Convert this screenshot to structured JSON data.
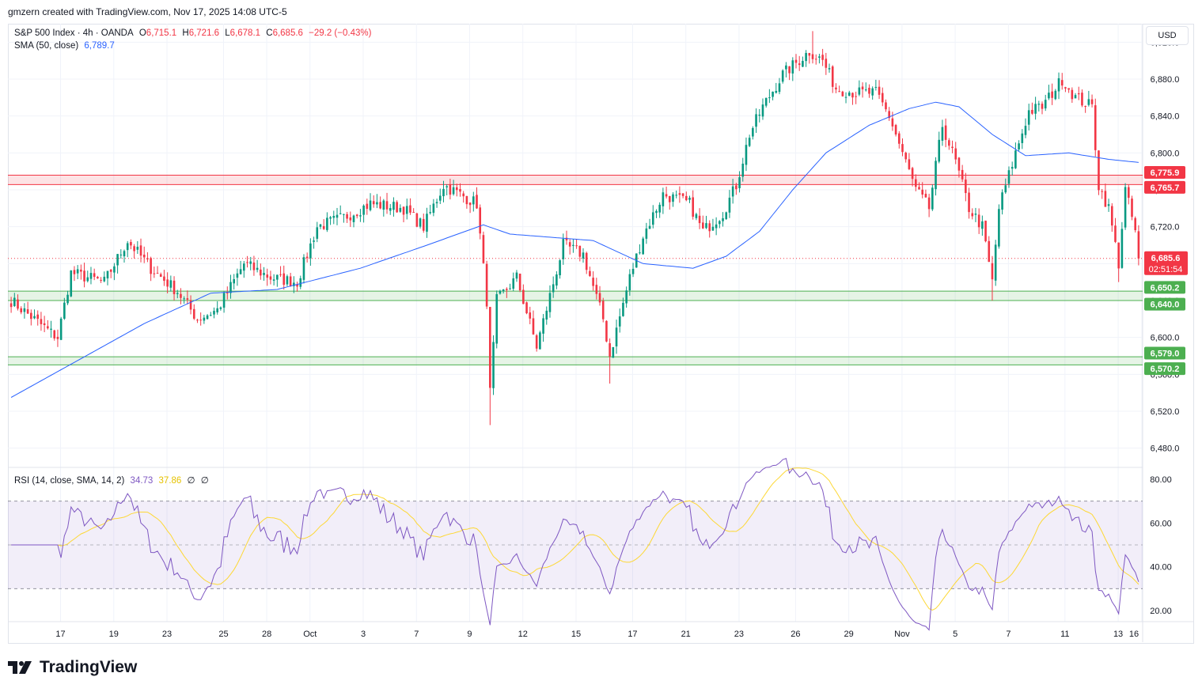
{
  "header": {
    "text": "gmzern created with TradingView.com, Nov 17, 2025 14:08 UTC-5"
  },
  "legend": {
    "symbol": "S&P 500 Index · 4h · OANDA",
    "o_label": "O",
    "o": "6,715.1",
    "h_label": "H",
    "h": "6,721.6",
    "l_label": "L",
    "l": "6,678.1",
    "c_label": "C",
    "c": "6,685.6",
    "change": "−29.2 (−0.43%)",
    "sma_label": "SMA (50, close)",
    "sma_value": "6,789.7",
    "rsi_label": "RSI (14, close, SMA, 14, 2)",
    "rsi_value": "34.73",
    "rsi_ma_value": "37.86",
    "rsi_extra1": "∅",
    "rsi_extra2": "∅"
  },
  "currency_button": "USD",
  "brand": {
    "name": "TradingView"
  },
  "colors": {
    "up": "#089981",
    "down": "#f23645",
    "sma": "#2962ff",
    "rsi": "#7e57c2",
    "rsi_ma": "#fdd835",
    "resistance": "#f23645",
    "support": "#4caf50"
  },
  "chart_data": [
    {
      "type": "candlestick",
      "title": "S&P 500 Index · 4h · OANDA",
      "ylim": [
        6460,
        6940
      ],
      "price_ticks": [
        "6,480.0",
        "6,520.0",
        "6,560.0",
        "6,600.0",
        "6,640.0",
        "6,680.0",
        "6,720.0",
        "6,760.0",
        "6,800.0",
        "6,840.0",
        "6,880.0",
        "6,920.0"
      ],
      "price_tick_values": [
        6480,
        6520,
        6560,
        6600,
        6640,
        6680,
        6720,
        6760,
        6800,
        6840,
        6880,
        6920
      ],
      "time_labels": [
        "17",
        "19",
        "23",
        "25",
        "28",
        "Oct",
        "3",
        "7",
        "9",
        "12",
        "15",
        "17",
        "21",
        "23",
        "26",
        "29",
        "Nov",
        "5",
        "7",
        "11",
        "13",
        "16"
      ],
      "bars": 340,
      "anchors": [
        {
          "i": 0,
          "p": 6640
        },
        {
          "i": 12,
          "p": 6605
        },
        {
          "i": 14,
          "p": 6600
        },
        {
          "i": 18,
          "p": 6670
        },
        {
          "i": 28,
          "p": 6660
        },
        {
          "i": 35,
          "p": 6705
        },
        {
          "i": 42,
          "p": 6675
        },
        {
          "i": 50,
          "p": 6650
        },
        {
          "i": 56,
          "p": 6620
        },
        {
          "i": 62,
          "p": 6630
        },
        {
          "i": 70,
          "p": 6680
        },
        {
          "i": 78,
          "p": 6665
        },
        {
          "i": 86,
          "p": 6660
        },
        {
          "i": 92,
          "p": 6720
        },
        {
          "i": 100,
          "p": 6730
        },
        {
          "i": 108,
          "p": 6745
        },
        {
          "i": 118,
          "p": 6740
        },
        {
          "i": 124,
          "p": 6720
        },
        {
          "i": 130,
          "p": 6765
        },
        {
          "i": 140,
          "p": 6745
        },
        {
          "i": 143,
          "p": 6640
        },
        {
          "i": 144,
          "p": 6540
        },
        {
          "i": 146,
          "p": 6640
        },
        {
          "i": 152,
          "p": 6665
        },
        {
          "i": 158,
          "p": 6590
        },
        {
          "i": 166,
          "p": 6700
        },
        {
          "i": 172,
          "p": 6690
        },
        {
          "i": 178,
          "p": 6620
        },
        {
          "i": 180,
          "p": 6580
        },
        {
          "i": 186,
          "p": 6665
        },
        {
          "i": 190,
          "p": 6710
        },
        {
          "i": 196,
          "p": 6755
        },
        {
          "i": 204,
          "p": 6745
        },
        {
          "i": 208,
          "p": 6715
        },
        {
          "i": 214,
          "p": 6735
        },
        {
          "i": 218,
          "p": 6765
        },
        {
          "i": 222,
          "p": 6820
        },
        {
          "i": 226,
          "p": 6850
        },
        {
          "i": 232,
          "p": 6885
        },
        {
          "i": 240,
          "p": 6910
        },
        {
          "i": 244,
          "p": 6900
        },
        {
          "i": 248,
          "p": 6870
        },
        {
          "i": 254,
          "p": 6865
        },
        {
          "i": 260,
          "p": 6865
        },
        {
          "i": 264,
          "p": 6840
        },
        {
          "i": 268,
          "p": 6800
        },
        {
          "i": 272,
          "p": 6760
        },
        {
          "i": 276,
          "p": 6740
        },
        {
          "i": 280,
          "p": 6830
        },
        {
          "i": 284,
          "p": 6790
        },
        {
          "i": 288,
          "p": 6740
        },
        {
          "i": 292,
          "p": 6720
        },
        {
          "i": 295,
          "p": 6660
        },
        {
          "i": 297,
          "p": 6740
        },
        {
          "i": 302,
          "p": 6800
        },
        {
          "i": 306,
          "p": 6845
        },
        {
          "i": 310,
          "p": 6850
        },
        {
          "i": 316,
          "p": 6880
        },
        {
          "i": 320,
          "p": 6860
        },
        {
          "i": 325,
          "p": 6850
        },
        {
          "i": 327,
          "p": 6765
        },
        {
          "i": 330,
          "p": 6740
        },
        {
          "i": 333,
          "p": 6680
        },
        {
          "i": 335,
          "p": 6760
        },
        {
          "i": 338,
          "p": 6715
        },
        {
          "i": 339,
          "p": 6685.6
        }
      ],
      "sma": {
        "name": "SMA (50, close)",
        "last": 6789.7,
        "points": [
          {
            "i": 0,
            "v": 6535
          },
          {
            "i": 40,
            "v": 6615
          },
          {
            "i": 60,
            "v": 6648
          },
          {
            "i": 80,
            "v": 6652
          },
          {
            "i": 105,
            "v": 6675
          },
          {
            "i": 125,
            "v": 6700
          },
          {
            "i": 142,
            "v": 6722
          },
          {
            "i": 150,
            "v": 6712
          },
          {
            "i": 175,
            "v": 6705
          },
          {
            "i": 190,
            "v": 6680
          },
          {
            "i": 205,
            "v": 6675
          },
          {
            "i": 215,
            "v": 6688
          },
          {
            "i": 225,
            "v": 6715
          },
          {
            "i": 235,
            "v": 6760
          },
          {
            "i": 245,
            "v": 6800
          },
          {
            "i": 258,
            "v": 6830
          },
          {
            "i": 270,
            "v": 6848
          },
          {
            "i": 278,
            "v": 6855
          },
          {
            "i": 285,
            "v": 6850
          },
          {
            "i": 295,
            "v": 6820
          },
          {
            "i": 305,
            "v": 6797
          },
          {
            "i": 318,
            "v": 6800
          },
          {
            "i": 330,
            "v": 6793
          },
          {
            "i": 339,
            "v": 6789.7
          }
        ]
      },
      "zones": [
        {
          "name": "resistance",
          "from": 6765.7,
          "to": 6775.9,
          "labels": [
            "6,775.9",
            "6,765.7"
          ]
        },
        {
          "name": "support-1",
          "from": 6640.0,
          "to": 6650.2,
          "labels": [
            "6,650.2",
            "6,640.0"
          ]
        },
        {
          "name": "support-2",
          "from": 6570.2,
          "to": 6579.0,
          "labels": [
            "6,579.0",
            "6,570.2"
          ]
        }
      ],
      "last_price": {
        "value": 6685.6,
        "label": "6,685.6",
        "countdown": "02:51:54"
      }
    },
    {
      "type": "line",
      "title": "RSI (14, close, SMA, 14, 2)",
      "ylim": [
        15,
        85
      ],
      "ticks": [
        "20.00",
        "40.00",
        "60.00",
        "80.00"
      ],
      "tick_values": [
        20,
        40,
        60,
        80
      ],
      "bands": {
        "upper": 70,
        "middle": 50,
        "lower": 30
      },
      "series": [
        {
          "name": "RSI",
          "last": 34.73
        },
        {
          "name": "RSI-based MA",
          "last": 37.86
        }
      ]
    }
  ]
}
